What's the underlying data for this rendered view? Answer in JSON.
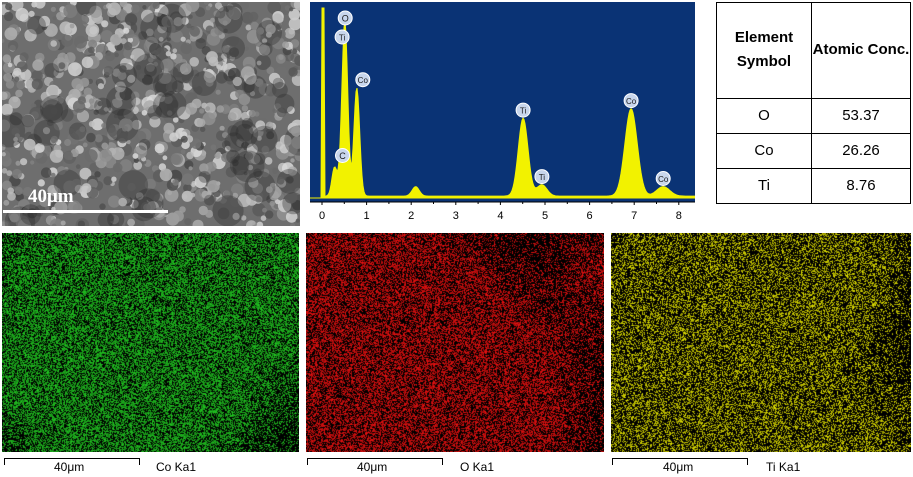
{
  "sem": {
    "scale_label": "40μm"
  },
  "spectrum": {
    "x_ticks": [
      "0",
      "1",
      "2",
      "3",
      "4",
      "5",
      "6",
      "7",
      "8"
    ],
    "peaks": [
      {
        "label": "C",
        "x": 0.28,
        "y": 0.15
      },
      {
        "label": "O",
        "x": 0.52,
        "y": 0.83
      },
      {
        "label": "Ti",
        "x": 0.45,
        "y": 0.17
      },
      {
        "label": "Co",
        "x": 0.78,
        "y": 0.57
      },
      {
        "label": "Ti",
        "x": 4.51,
        "y": 0.41
      },
      {
        "label": "Ti",
        "x": 4.93,
        "y": 0.06
      },
      {
        "label": "Co",
        "x": 6.93,
        "y": 0.46
      },
      {
        "label": "Co",
        "x": 7.65,
        "y": 0.05
      }
    ],
    "minor_peak": {
      "x": 2.1,
      "y": 0.05
    },
    "colors": {
      "background": "#0a3375",
      "trace": "#f2f200",
      "marker_fill": "#c8d6ec"
    }
  },
  "table": {
    "headers": [
      "Element Symbol",
      "Atomic Conc."
    ],
    "rows": [
      {
        "element": "O",
        "conc": "53.37"
      },
      {
        "element": "Co",
        "conc": "26.26"
      },
      {
        "element": "Ti",
        "conc": "8.76"
      }
    ]
  },
  "maps": [
    {
      "id": "co",
      "scale_label": "40μm",
      "label": "Co Ka1",
      "color": "#22cc22"
    },
    {
      "id": "o",
      "scale_label": "40μm",
      "label": "O Ka1",
      "color": "#ee1111"
    },
    {
      "id": "ti",
      "scale_label": "40μm",
      "label": "Ti Ka1",
      "color": "#e6e600"
    }
  ]
}
